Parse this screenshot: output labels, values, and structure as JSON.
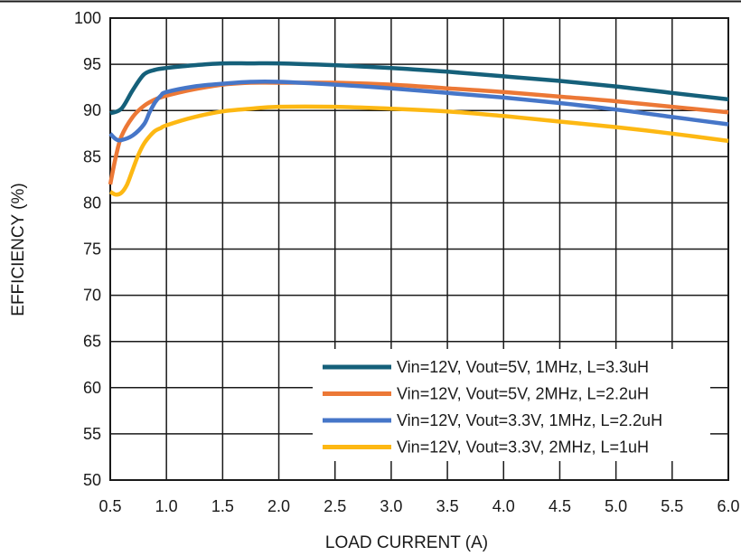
{
  "chart_data": {
    "type": "line",
    "xlabel": "LOAD CURRENT (A)",
    "ylabel": "EFFICIENCY (%)",
    "xlim": [
      0.5,
      6.0
    ],
    "ylim": [
      50,
      100
    ],
    "x_ticks": [
      "0.5",
      "1.0",
      "1.5",
      "2.0",
      "2.5",
      "3.0",
      "3.5",
      "4.0",
      "4.5",
      "5.0",
      "5.5",
      "6.0"
    ],
    "y_ticks": [
      "50",
      "55",
      "60",
      "65",
      "70",
      "75",
      "80",
      "85",
      "90",
      "95",
      "100"
    ],
    "grid": true,
    "legend_position": "bottom-right",
    "series": [
      {
        "name": "Vin=12V, Vout=5V, 1MHz, L=3.3uH",
        "color": "#15607a",
        "x": [
          0.5,
          0.6,
          0.7,
          0.8,
          0.9,
          1.0,
          1.25,
          1.5,
          1.75,
          2.0,
          2.5,
          3.0,
          3.5,
          4.0,
          4.5,
          5.0,
          5.5,
          6.0
        ],
        "y": [
          89.7,
          90.2,
          92.2,
          93.9,
          94.4,
          94.6,
          94.9,
          95.1,
          95.1,
          95.1,
          94.9,
          94.6,
          94.2,
          93.7,
          93.2,
          92.6,
          91.9,
          91.2
        ]
      },
      {
        "name": "Vin=12V, Vout=5V, 2MHz, L=2.2uH",
        "color": "#ec7836",
        "x": [
          0.5,
          0.55,
          0.6,
          0.7,
          0.8,
          0.9,
          1.0,
          1.25,
          1.5,
          1.75,
          2.0,
          2.5,
          3.0,
          3.5,
          4.0,
          4.5,
          5.0,
          5.5,
          6.0
        ],
        "y": [
          82.0,
          85.0,
          87.2,
          89.3,
          90.5,
          91.2,
          91.6,
          92.3,
          92.8,
          93.0,
          93.0,
          93.0,
          92.8,
          92.4,
          92.0,
          91.5,
          91.0,
          90.4,
          89.8
        ]
      },
      {
        "name": "Vin=12V, Vout=3.3V, 1MHz, L=2.2uH",
        "color": "#4676c8",
        "x": [
          0.5,
          0.55,
          0.6,
          0.7,
          0.8,
          0.85,
          0.9,
          0.95,
          1.0,
          1.25,
          1.5,
          1.75,
          2.0,
          2.5,
          3.0,
          3.5,
          4.0,
          4.5,
          5.0,
          5.5,
          6.0
        ],
        "y": [
          87.5,
          86.9,
          86.8,
          87.3,
          88.5,
          89.8,
          90.9,
          91.6,
          92.0,
          92.6,
          92.9,
          93.1,
          93.1,
          92.8,
          92.4,
          91.9,
          91.4,
          90.8,
          90.1,
          89.3,
          88.5
        ]
      },
      {
        "name": "Vin=12V, Vout=3.3V, 2MHz, L=1uH",
        "color": "#fdb813",
        "x": [
          0.5,
          0.55,
          0.6,
          0.65,
          0.7,
          0.75,
          0.8,
          0.85,
          0.9,
          0.95,
          1.0,
          1.25,
          1.5,
          1.75,
          2.0,
          2.5,
          3.0,
          3.5,
          4.0,
          4.5,
          5.0,
          5.5,
          6.0
        ],
        "y": [
          81.2,
          80.9,
          81.1,
          82.0,
          83.6,
          85.2,
          86.4,
          87.2,
          87.8,
          88.1,
          88.4,
          89.3,
          89.9,
          90.2,
          90.4,
          90.4,
          90.2,
          89.9,
          89.4,
          88.8,
          88.2,
          87.5,
          86.7
        ]
      }
    ]
  }
}
